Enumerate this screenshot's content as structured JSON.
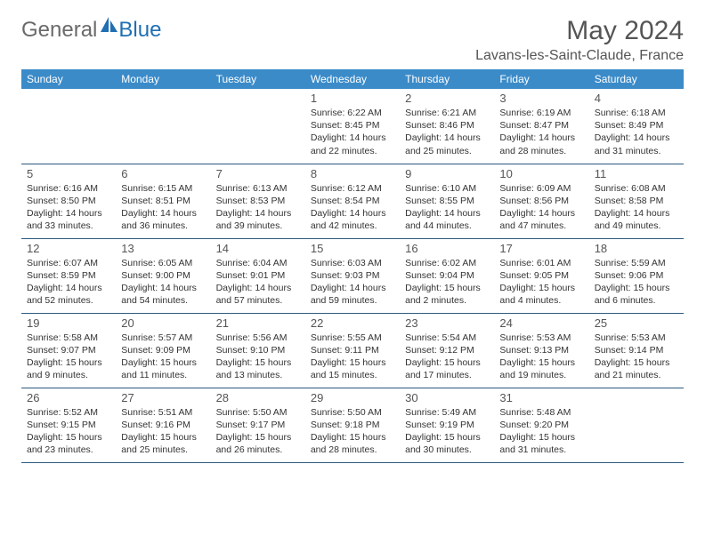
{
  "logo": {
    "general": "General",
    "blue": "Blue"
  },
  "title": "May 2024",
  "location": "Lavans-les-Saint-Claude, France",
  "colors": {
    "header_bg": "#3b8bc9",
    "header_text": "#ffffff",
    "logo_gray": "#6a6a6a",
    "logo_blue": "#1f6fb2",
    "title_gray": "#555555",
    "cell_border": "#2b5a7f",
    "body_text": "#333333"
  },
  "weekdays": [
    "Sunday",
    "Monday",
    "Tuesday",
    "Wednesday",
    "Thursday",
    "Friday",
    "Saturday"
  ],
  "weeks": [
    [
      null,
      null,
      null,
      {
        "n": "1",
        "sr": "6:22 AM",
        "ss": "8:45 PM",
        "dl": "14 hours and 22 minutes."
      },
      {
        "n": "2",
        "sr": "6:21 AM",
        "ss": "8:46 PM",
        "dl": "14 hours and 25 minutes."
      },
      {
        "n": "3",
        "sr": "6:19 AM",
        "ss": "8:47 PM",
        "dl": "14 hours and 28 minutes."
      },
      {
        "n": "4",
        "sr": "6:18 AM",
        "ss": "8:49 PM",
        "dl": "14 hours and 31 minutes."
      }
    ],
    [
      {
        "n": "5",
        "sr": "6:16 AM",
        "ss": "8:50 PM",
        "dl": "14 hours and 33 minutes."
      },
      {
        "n": "6",
        "sr": "6:15 AM",
        "ss": "8:51 PM",
        "dl": "14 hours and 36 minutes."
      },
      {
        "n": "7",
        "sr": "6:13 AM",
        "ss": "8:53 PM",
        "dl": "14 hours and 39 minutes."
      },
      {
        "n": "8",
        "sr": "6:12 AM",
        "ss": "8:54 PM",
        "dl": "14 hours and 42 minutes."
      },
      {
        "n": "9",
        "sr": "6:10 AM",
        "ss": "8:55 PM",
        "dl": "14 hours and 44 minutes."
      },
      {
        "n": "10",
        "sr": "6:09 AM",
        "ss": "8:56 PM",
        "dl": "14 hours and 47 minutes."
      },
      {
        "n": "11",
        "sr": "6:08 AM",
        "ss": "8:58 PM",
        "dl": "14 hours and 49 minutes."
      }
    ],
    [
      {
        "n": "12",
        "sr": "6:07 AM",
        "ss": "8:59 PM",
        "dl": "14 hours and 52 minutes."
      },
      {
        "n": "13",
        "sr": "6:05 AM",
        "ss": "9:00 PM",
        "dl": "14 hours and 54 minutes."
      },
      {
        "n": "14",
        "sr": "6:04 AM",
        "ss": "9:01 PM",
        "dl": "14 hours and 57 minutes."
      },
      {
        "n": "15",
        "sr": "6:03 AM",
        "ss": "9:03 PM",
        "dl": "14 hours and 59 minutes."
      },
      {
        "n": "16",
        "sr": "6:02 AM",
        "ss": "9:04 PM",
        "dl": "15 hours and 2 minutes."
      },
      {
        "n": "17",
        "sr": "6:01 AM",
        "ss": "9:05 PM",
        "dl": "15 hours and 4 minutes."
      },
      {
        "n": "18",
        "sr": "5:59 AM",
        "ss": "9:06 PM",
        "dl": "15 hours and 6 minutes."
      }
    ],
    [
      {
        "n": "19",
        "sr": "5:58 AM",
        "ss": "9:07 PM",
        "dl": "15 hours and 9 minutes."
      },
      {
        "n": "20",
        "sr": "5:57 AM",
        "ss": "9:09 PM",
        "dl": "15 hours and 11 minutes."
      },
      {
        "n": "21",
        "sr": "5:56 AM",
        "ss": "9:10 PM",
        "dl": "15 hours and 13 minutes."
      },
      {
        "n": "22",
        "sr": "5:55 AM",
        "ss": "9:11 PM",
        "dl": "15 hours and 15 minutes."
      },
      {
        "n": "23",
        "sr": "5:54 AM",
        "ss": "9:12 PM",
        "dl": "15 hours and 17 minutes."
      },
      {
        "n": "24",
        "sr": "5:53 AM",
        "ss": "9:13 PM",
        "dl": "15 hours and 19 minutes."
      },
      {
        "n": "25",
        "sr": "5:53 AM",
        "ss": "9:14 PM",
        "dl": "15 hours and 21 minutes."
      }
    ],
    [
      {
        "n": "26",
        "sr": "5:52 AM",
        "ss": "9:15 PM",
        "dl": "15 hours and 23 minutes."
      },
      {
        "n": "27",
        "sr": "5:51 AM",
        "ss": "9:16 PM",
        "dl": "15 hours and 25 minutes."
      },
      {
        "n": "28",
        "sr": "5:50 AM",
        "ss": "9:17 PM",
        "dl": "15 hours and 26 minutes."
      },
      {
        "n": "29",
        "sr": "5:50 AM",
        "ss": "9:18 PM",
        "dl": "15 hours and 28 minutes."
      },
      {
        "n": "30",
        "sr": "5:49 AM",
        "ss": "9:19 PM",
        "dl": "15 hours and 30 minutes."
      },
      {
        "n": "31",
        "sr": "5:48 AM",
        "ss": "9:20 PM",
        "dl": "15 hours and 31 minutes."
      },
      null
    ]
  ],
  "labels": {
    "sunrise": "Sunrise:",
    "sunset": "Sunset:",
    "daylight": "Daylight:"
  }
}
